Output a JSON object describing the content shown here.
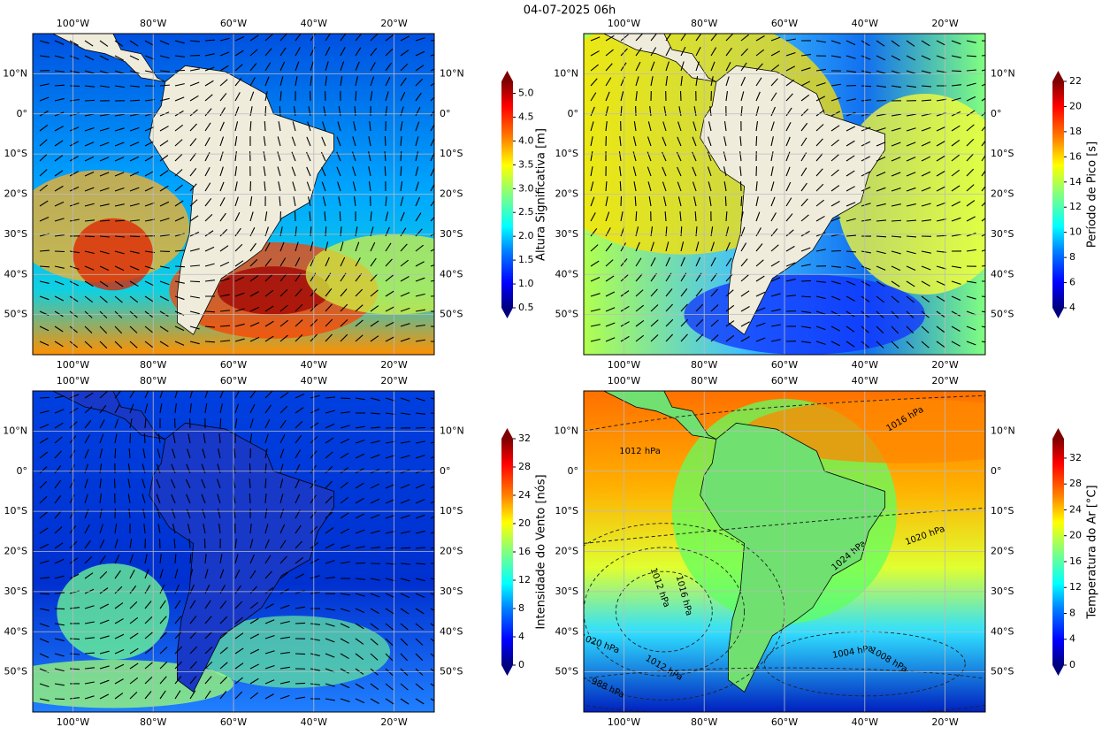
{
  "title": "04-07-2025 06h",
  "map": {
    "lonlim": [
      -110,
      -10
    ],
    "latlim": [
      -60,
      20
    ],
    "lonticks": [
      {
        "value": -100,
        "label": "100°W"
      },
      {
        "value": -80,
        "label": "80°W"
      },
      {
        "value": -60,
        "label": "60°W"
      },
      {
        "value": -40,
        "label": "40°W"
      },
      {
        "value": -20,
        "label": "20°W"
      }
    ],
    "latticks": [
      {
        "value": 10,
        "label": "10°N"
      },
      {
        "value": 0,
        "label": "0°"
      },
      {
        "value": -10,
        "label": "10°S"
      },
      {
        "value": -20,
        "label": "20°S"
      },
      {
        "value": -30,
        "label": "30°S"
      },
      {
        "value": -40,
        "label": "40°S"
      },
      {
        "value": -50,
        "label": "50°S"
      }
    ]
  },
  "panels": [
    {
      "colorbar": {
        "label": "Altura Significativa [m]",
        "lim": [
          0.5,
          5.25
        ],
        "ticks": [
          {
            "value": 0.5,
            "label": "0.5"
          },
          {
            "value": 1,
            "label": "1.0"
          },
          {
            "value": 1.5,
            "label": "1.5"
          },
          {
            "value": 2,
            "label": "2.0"
          },
          {
            "value": 2.5,
            "label": "2.5"
          },
          {
            "value": 3,
            "label": "3.0"
          },
          {
            "value": 3.5,
            "label": "3.5"
          },
          {
            "value": 4,
            "label": "4.0"
          },
          {
            "value": 4.5,
            "label": "4.5"
          },
          {
            "value": 5,
            "label": "5.0"
          }
        ]
      }
    },
    {
      "colorbar": {
        "label": "Período de Pico [s]",
        "lim": [
          4,
          22
        ],
        "ticks": [
          4,
          6,
          8,
          10,
          12,
          14,
          16,
          18,
          20,
          22
        ]
      }
    },
    {
      "colorbar": {
        "label": "Intensidade do Vento [nós]",
        "lim": [
          0,
          32
        ],
        "ticks": [
          0,
          4,
          8,
          12,
          16,
          20,
          24,
          28,
          32
        ]
      }
    },
    {
      "colorbar": {
        "label": "Temperatura do Ar [°C]",
        "lim": [
          0,
          35
        ],
        "ticks": [
          0,
          4,
          8,
          12,
          16,
          20,
          24,
          28,
          32
        ]
      },
      "contour_labels": [
        "1016 hPa",
        "1012 hPa",
        "1020 hPa",
        "1024 hPa",
        "1012 hPa",
        "1016 hPa",
        "1004 hPa",
        "1008 hPa",
        "1020 hPa",
        "1012 hPa",
        "988 hPa"
      ]
    }
  ]
}
